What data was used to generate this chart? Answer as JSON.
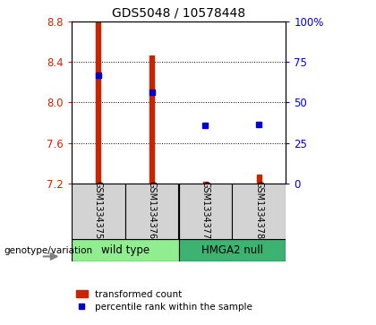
{
  "title": "GDS5048 / 10578448",
  "samples": [
    "GSM1334375",
    "GSM1334376",
    "GSM1334377",
    "GSM1334378"
  ],
  "ylim_left": [
    7.2,
    8.8
  ],
  "ylim_right": [
    0,
    100
  ],
  "yticks_left": [
    7.2,
    7.6,
    8.0,
    8.4,
    8.8
  ],
  "yticks_right": [
    0,
    25,
    50,
    75,
    100
  ],
  "ytick_labels_right": [
    "0",
    "25",
    "50",
    "75",
    "100%"
  ],
  "red_bars": {
    "GSM1334375": [
      7.2,
      8.8
    ],
    "GSM1334376": [
      7.2,
      8.46
    ],
    "GSM1334377": [
      7.2,
      7.22
    ],
    "GSM1334378": [
      7.2,
      7.29
    ]
  },
  "blue_squares_left_axis": {
    "GSM1334375": 8.27,
    "GSM1334376": 8.1,
    "GSM1334377": 7.77,
    "GSM1334378": 7.78
  },
  "red_bar_color": "#cc2200",
  "blue_square_color": "#0000cc",
  "bar_width": 0.09,
  "left_tick_color": "#cc2200",
  "right_tick_color": "#0000cc",
  "legend_label_red": "transformed count",
  "legend_label_blue": "percentile rank within the sample",
  "genotype_label": "genotype/variation",
  "group1_label": "wild type",
  "group1_color": "#90EE90",
  "group2_label": "HMGA2 null",
  "group2_color": "#3cb371",
  "x_positions": [
    1,
    2,
    3,
    4
  ]
}
